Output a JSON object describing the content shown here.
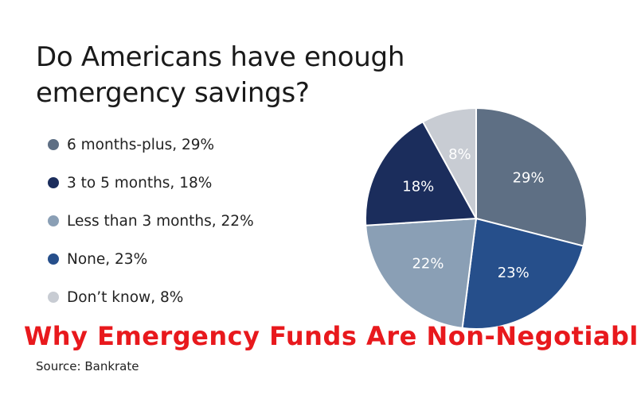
{
  "title_lines": [
    "Do Americans have enough",
    "emergency savings?"
  ],
  "legend": [
    {
      "label": "6 months-plus, 29%",
      "color": "#5e6f84"
    },
    {
      "label": "3 to 5 months, 18%",
      "color": "#1b2d5c"
    },
    {
      "label": "Less than 3 months, 22%",
      "color": "#8a9fb5"
    },
    {
      "label": "None, 23%",
      "color": "#264f8b"
    },
    {
      "label": "Don’t know, 8%",
      "color": "#c8ccd3"
    }
  ],
  "overlay_title": "Why Emergency Funds Are Non-Negotiable",
  "source": "Source: Bankrate",
  "chart_data": {
    "type": "pie",
    "title": "Do Americans have enough emergency savings?",
    "start": "12 o'clock",
    "direction": "clockwise",
    "slices": [
      {
        "label": "6 months-plus",
        "value": 29,
        "display": "29%",
        "color": "#5e6f84"
      },
      {
        "label": "None",
        "value": 23,
        "display": "23%",
        "color": "#264f8b"
      },
      {
        "label": "Less than 3 months",
        "value": 22,
        "display": "22%",
        "color": "#8a9fb5"
      },
      {
        "label": "3 to 5 months",
        "value": 18,
        "display": "18%",
        "color": "#1b2d5c"
      },
      {
        "label": "Don’t know",
        "value": 8,
        "display": "8%",
        "color": "#c8ccd3"
      }
    ],
    "legend_position": "left"
  }
}
